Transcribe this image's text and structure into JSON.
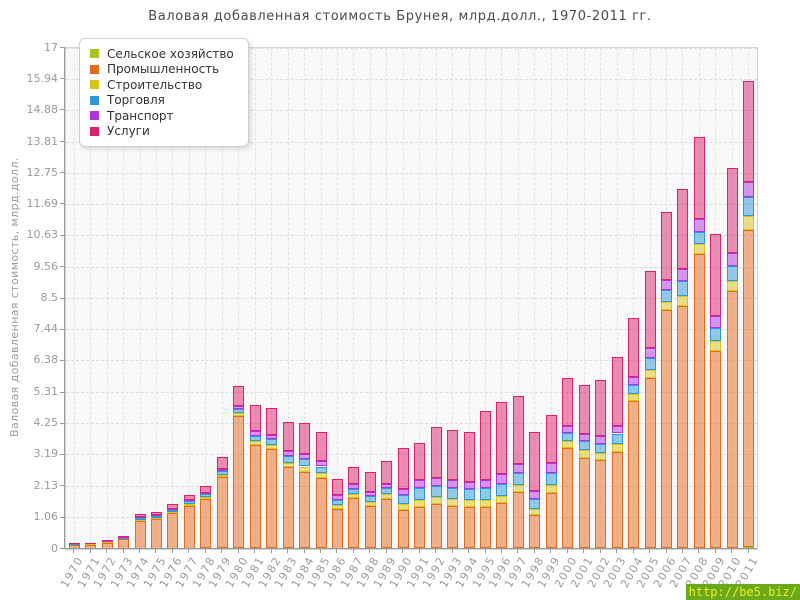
{
  "watermark": {
    "url": "http://be5.biz/",
    "bg": "#6aa81d",
    "color": "#f0ec1e"
  },
  "chart_data": {
    "type": "bar",
    "stacked": true,
    "title": "Валовая добавленная стоимость Брунея, млрд.долл., 1970-2011 гг.",
    "xlabel": "",
    "ylabel": "Валовая добавленная стоимость, млрд.долл.",
    "ylim": [
      0,
      17
    ],
    "grid": "dashed",
    "legend_position": "top-left",
    "yticks": [
      "0",
      "1.06",
      "2.13",
      "3.19",
      "4.25",
      "5.31",
      "6.38",
      "7.44",
      "8.5",
      "9.56",
      "10.63",
      "11.69",
      "12.75",
      "13.81",
      "14.88",
      "15.94",
      "17"
    ],
    "categories": [
      "1970",
      "1971",
      "1972",
      "1973",
      "1974",
      "1975",
      "1976",
      "1977",
      "1978",
      "1979",
      "1980",
      "1981",
      "1982",
      "1983",
      "1984",
      "1985",
      "1986",
      "1987",
      "1988",
      "1989",
      "1990",
      "1991",
      "1992",
      "1993",
      "1994",
      "1995",
      "1996",
      "1997",
      "1998",
      "1999",
      "2000",
      "2001",
      "2002",
      "2003",
      "2004",
      "2005",
      "2006",
      "2007",
      "2008",
      "2009",
      "2010",
      "2011"
    ],
    "series": [
      {
        "name": "Сельское хозяйство",
        "color": "#a9c421",
        "values": [
          0.01,
          0.01,
          0.01,
          0.01,
          0.01,
          0.01,
          0.015,
          0.015,
          0.02,
          0.02,
          0.02,
          0.02,
          0.02,
          0.03,
          0.02,
          0.02,
          0.01,
          0.02,
          0.02,
          0.02,
          0.03,
          0.03,
          0.03,
          0.03,
          0.03,
          0.04,
          0.03,
          0.04,
          0.03,
          0.04,
          0.04,
          0.04,
          0.04,
          0.05,
          0.05,
          0.05,
          0.05,
          0.05,
          0.05,
          0.04,
          0.05,
          0.06
        ]
      },
      {
        "name": "Промышленность",
        "color": "#e76a1c",
        "values": [
          0.12,
          0.14,
          0.21,
          0.32,
          0.95,
          1.0,
          1.2,
          1.45,
          1.67,
          2.42,
          4.5,
          3.5,
          3.37,
          2.75,
          2.61,
          2.39,
          1.36,
          1.71,
          1.45,
          1.69,
          1.3,
          1.39,
          1.5,
          1.43,
          1.4,
          1.39,
          1.53,
          1.9,
          1.12,
          1.86,
          3.39,
          3.05,
          2.98,
          3.23,
          4.98,
          5.76,
          8.07,
          8.19,
          9.95,
          6.67,
          8.7,
          10.75
        ]
      },
      {
        "name": "Строительство",
        "color": "#d9c519",
        "values": [
          0.01,
          0.01,
          0.015,
          0.02,
          0.04,
          0.04,
          0.05,
          0.06,
          0.07,
          0.08,
          0.1,
          0.14,
          0.14,
          0.14,
          0.17,
          0.16,
          0.14,
          0.14,
          0.14,
          0.15,
          0.19,
          0.24,
          0.24,
          0.24,
          0.22,
          0.24,
          0.24,
          0.24,
          0.2,
          0.27,
          0.24,
          0.27,
          0.25,
          0.27,
          0.24,
          0.27,
          0.27,
          0.34,
          0.34,
          0.34,
          0.33,
          0.5
        ]
      },
      {
        "name": "Торговля",
        "color": "#2e97d9",
        "values": [
          0.015,
          0.015,
          0.02,
          0.03,
          0.05,
          0.06,
          0.07,
          0.09,
          0.1,
          0.12,
          0.12,
          0.19,
          0.19,
          0.24,
          0.24,
          0.23,
          0.17,
          0.18,
          0.2,
          0.2,
          0.3,
          0.4,
          0.37,
          0.37,
          0.37,
          0.41,
          0.4,
          0.41,
          0.34,
          0.41,
          0.27,
          0.3,
          0.3,
          0.37,
          0.31,
          0.4,
          0.4,
          0.5,
          0.41,
          0.44,
          0.51,
          0.65
        ]
      },
      {
        "name": "Транспорт",
        "color": "#b233dd",
        "values": [
          0.01,
          0.01,
          0.01,
          0.015,
          0.02,
          0.03,
          0.035,
          0.04,
          0.05,
          0.07,
          0.1,
          0.15,
          0.15,
          0.17,
          0.17,
          0.17,
          0.14,
          0.14,
          0.14,
          0.15,
          0.22,
          0.27,
          0.27,
          0.27,
          0.26,
          0.27,
          0.34,
          0.31,
          0.27,
          0.34,
          0.22,
          0.24,
          0.26,
          0.27,
          0.27,
          0.34,
          0.34,
          0.41,
          0.44,
          0.41,
          0.44,
          0.51
        ]
      },
      {
        "name": "Услуги",
        "color": "#d9216e",
        "values": [
          0.025,
          0.03,
          0.04,
          0.05,
          0.12,
          0.13,
          0.15,
          0.19,
          0.23,
          0.41,
          0.68,
          0.88,
          0.92,
          0.99,
          1.05,
          1.0,
          0.54,
          0.58,
          0.68,
          0.78,
          1.38,
          1.28,
          1.72,
          1.7,
          1.7,
          2.33,
          2.44,
          2.3,
          2.0,
          1.63,
          1.66,
          1.66,
          1.9,
          2.31,
          2.0,
          2.6,
          2.31,
          2.71,
          2.8,
          2.8,
          2.89,
          3.4
        ]
      }
    ]
  }
}
